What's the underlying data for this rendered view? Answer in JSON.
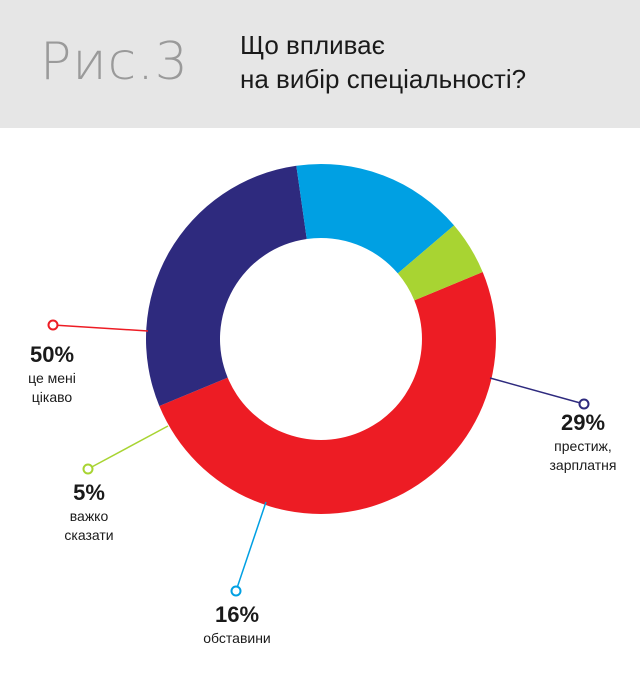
{
  "header": {
    "figure_label": "Рис.3",
    "title_line1": "Що впливає",
    "title_line2": "на вибір спеціальності?"
  },
  "chart_data": {
    "type": "pie",
    "donut": true,
    "slices": [
      {
        "label": "це мені цікаво",
        "label_lines": [
          "це мені",
          "цікаво"
        ],
        "value": 50,
        "value_label": "50%",
        "color": "#ed1c24"
      },
      {
        "label": "престиж, зарплатня",
        "label_lines": [
          "престиж,",
          "зарплатня"
        ],
        "value": 29,
        "value_label": "29%",
        "color": "#2e2a7e"
      },
      {
        "label": "обставини",
        "label_lines": [
          "обставини"
        ],
        "value": 16,
        "value_label": "16%",
        "color": "#00a0e3"
      },
      {
        "label": "важко сказати",
        "label_lines": [
          "важко",
          "сказати"
        ],
        "value": 5,
        "value_label": "5%",
        "color": "#a8d432"
      }
    ]
  }
}
